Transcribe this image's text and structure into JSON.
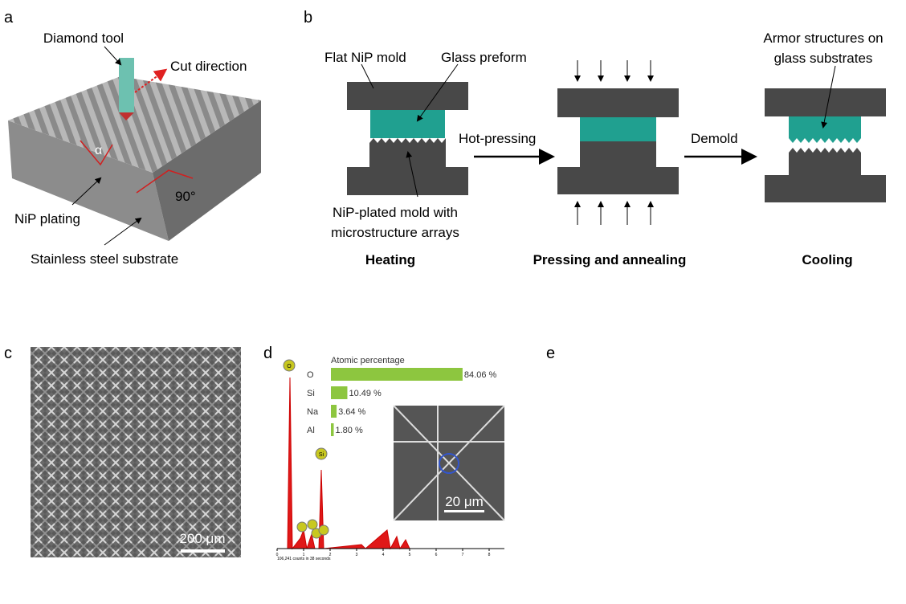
{
  "panel_a": {
    "label": "a",
    "tool": "Diamond tool",
    "cut": "Cut direction",
    "angle": "α",
    "right_angle": "90°",
    "plating": "NiP plating",
    "substrate": "Stainless steel substrate"
  },
  "panel_b": {
    "label": "b",
    "flat_mold": "Flat NiP mold",
    "glass_preform": "Glass preform",
    "mold_lines": [
      "NiP-plated mold with",
      "microstructure arrays"
    ],
    "armor_lines": [
      "Armor structures on",
      "glass substrates"
    ],
    "hot_pressing": "Hot-pressing",
    "demold": "Demold",
    "stages": [
      "Heating",
      "Pressing and annealing",
      "Cooling"
    ]
  },
  "panel_c": {
    "label": "c",
    "scale_bar": "200 μm"
  },
  "panel_d": {
    "label": "d",
    "spectrum": {
      "xticks": [
        0,
        1,
        2,
        3,
        4,
        5,
        6,
        7,
        8
      ],
      "caption": "106,241 counts in 38 seconds",
      "peaks": [
        "O",
        "Si"
      ]
    },
    "inset_scale_bar": "20 μm"
  },
  "chart_data": {
    "type": "bar",
    "orientation": "horizontal",
    "title": "Atomic percentage",
    "categories": [
      "O",
      "Si",
      "Na",
      "Al"
    ],
    "values": [
      84.06,
      10.49,
      3.64,
      1.8
    ],
    "value_labels": [
      "84.06 %",
      "10.49 %",
      "3.64 %",
      "1.80 %"
    ],
    "color": "#8dc63f",
    "xlim": [
      0,
      100
    ]
  },
  "panel_e": {
    "label": "e"
  }
}
